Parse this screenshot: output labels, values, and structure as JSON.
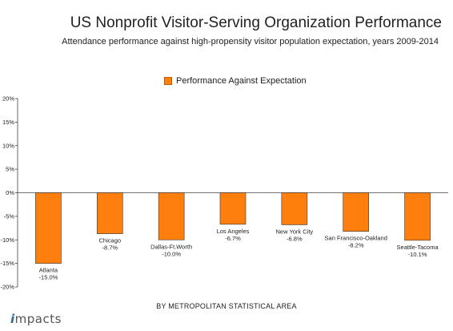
{
  "chart_data": {
    "type": "bar",
    "title": "US Nonprofit Visitor-Serving Organization Performance",
    "subtitle": "Attendance performance against high-propensity visitor population expectation, years 2009-2014",
    "xlabel": "BY METROPOLITAN STATISTICAL AREA",
    "ylabel": "",
    "legend": "top-center",
    "grid": false,
    "ylim": [
      -20,
      20
    ],
    "yticks": [
      20,
      15,
      10,
      5,
      0,
      -5,
      -10,
      -15,
      -20
    ],
    "ytick_labels": [
      "20%",
      "15%",
      "10%",
      "5%",
      "0%",
      "-5%",
      "-10%",
      "-15%",
      "-20%"
    ],
    "categories": [
      "Atlanta",
      "Chicago",
      "Dallas-Ft.Worth",
      "Los Angeles",
      "New York City",
      "San Francisco-Oakland",
      "Seattle-Tacoma"
    ],
    "series": [
      {
        "name": "Performance Against Expectation",
        "color": "#FF7F0E",
        "values": [
          -15.0,
          -8.7,
          -10.0,
          -6.7,
          -6.8,
          -8.2,
          -10.1
        ],
        "data_labels": [
          "-15.0%",
          "-8.7%",
          "-10.0%",
          "-6.7%",
          "-6.8%",
          "-8.2%",
          "-10.1%"
        ]
      }
    ]
  },
  "branding": {
    "logo_initial": "i",
    "logo_rest": "mpacts"
  }
}
